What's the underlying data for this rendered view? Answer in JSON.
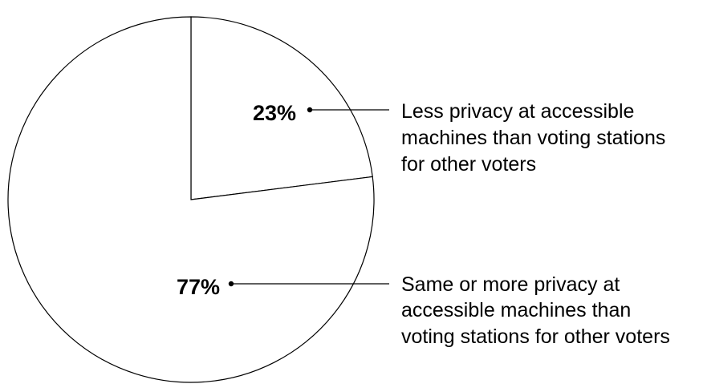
{
  "chart_data": {
    "type": "pie",
    "categories": [
      "Less privacy at accessible machines than voting stations for other voters",
      "Same or more privacy at accessible machines than voting stations for other voters"
    ],
    "values": [
      23,
      77
    ],
    "value_labels": [
      "23%",
      "77%"
    ],
    "label_lines": [
      [
        "Less privacy at accessible",
        "machines than voting stations",
        "for other voters"
      ],
      [
        "Same or more privacy at",
        "accessible machines than",
        "voting stations for other voters"
      ]
    ],
    "title": "",
    "legend": "none",
    "colors": {
      "fill": "#ffffff",
      "stroke": "#000000"
    }
  }
}
